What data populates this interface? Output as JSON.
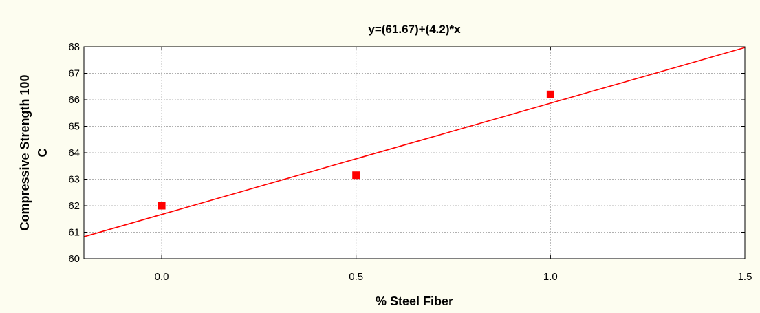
{
  "chart_data": {
    "type": "scatter",
    "title": "y=(61.67)+(4.2)*x",
    "xlabel": "% Steel Fiber",
    "ylabel_lines": [
      "Compressive Strength 100",
      "C"
    ],
    "xlim": [
      -0.2,
      1.5
    ],
    "ylim": [
      60,
      68
    ],
    "x_ticks": [
      "0.0",
      "0.5",
      "1.0",
      "1.5"
    ],
    "x_tick_values": [
      0.0,
      0.5,
      1.0,
      1.5
    ],
    "y_ticks": [
      "60",
      "61",
      "62",
      "63",
      "64",
      "65",
      "66",
      "67",
      "68"
    ],
    "y_tick_values": [
      60,
      61,
      62,
      63,
      64,
      65,
      66,
      67,
      68
    ],
    "grid": true,
    "points": [
      {
        "x": 0.0,
        "y": 62.0
      },
      {
        "x": 0.5,
        "y": 63.15
      },
      {
        "x": 1.0,
        "y": 66.2
      }
    ],
    "fit": {
      "intercept": 61.67,
      "slope": 4.2
    },
    "colors": {
      "points": "#ff0000",
      "fit_line": "#ff0000",
      "background": "#fdfdf0",
      "plot_area": "#ffffff"
    }
  }
}
